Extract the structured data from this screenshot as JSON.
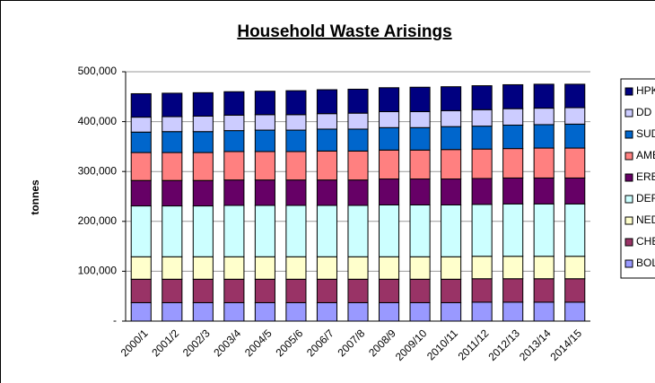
{
  "chart_data": {
    "type": "stacked_bar",
    "title": "Household Waste Arisings",
    "y_label": "tonnes",
    "categories": [
      "2000/1",
      "2001/2",
      "2002/3",
      "2003/4",
      "2004/5",
      "2005/6",
      "2006/7",
      "2007/8",
      "2008/9",
      "2009/10",
      "2010/11",
      "2011/12",
      "2012/13",
      "2013/14",
      "2014/15"
    ],
    "series": [
      {
        "name": "BOL",
        "color": "#9999ff",
        "values": [
          37000,
          37000,
          37000,
          37000,
          37000,
          37000,
          37000,
          37000,
          37000,
          37000,
          37000,
          38000,
          38000,
          38000,
          38000
        ]
      },
      {
        "name": "CHE",
        "color": "#993366",
        "values": [
          47000,
          47000,
          47000,
          47000,
          47000,
          47000,
          47000,
          47000,
          47000,
          47000,
          47000,
          47000,
          47000,
          47000,
          47000
        ]
      },
      {
        "name": "NED",
        "color": "#ffffcc",
        "values": [
          45000,
          45000,
          45000,
          45000,
          45000,
          45000,
          45000,
          45000,
          45000,
          45000,
          45000,
          45000,
          45000,
          45000,
          45000
        ]
      },
      {
        "name": "DER",
        "color": "#ccffff",
        "values": [
          102000,
          102000,
          102000,
          103000,
          103000,
          103000,
          103000,
          103000,
          104000,
          104000,
          104000,
          104000,
          105000,
          105000,
          105000
        ]
      },
      {
        "name": "ERE",
        "color": "#660066",
        "values": [
          51000,
          51000,
          51000,
          51000,
          51000,
          51000,
          51000,
          51000,
          52000,
          52000,
          52000,
          52000,
          52000,
          52000,
          52000
        ]
      },
      {
        "name": "AMB",
        "color": "#ff8080",
        "values": [
          56000,
          56000,
          56000,
          57000,
          57000,
          57000,
          58000,
          58000,
          58000,
          58000,
          59000,
          59000,
          59000,
          60000,
          60000
        ]
      },
      {
        "name": "SUD",
        "color": "#0066cc",
        "values": [
          41000,
          42000,
          42000,
          42000,
          43000,
          43000,
          44000,
          44000,
          45000,
          45000,
          46000,
          46000,
          47000,
          47000,
          48000
        ]
      },
      {
        "name": "DD",
        "color": "#ccccff",
        "values": [
          30000,
          30000,
          31000,
          31000,
          31000,
          31000,
          31000,
          32000,
          32000,
          32000,
          32000,
          33000,
          33000,
          33000,
          33000
        ]
      },
      {
        "name": "HPK",
        "color": "#000080",
        "values": [
          47000,
          47000,
          47000,
          47000,
          47000,
          48000,
          48000,
          48000,
          48000,
          49000,
          48000,
          48000,
          48000,
          48000,
          47000
        ]
      }
    ],
    "ylim": [
      0,
      500000
    ],
    "yticks": [
      {
        "value": 0,
        "label": "-"
      },
      {
        "value": 100000,
        "label": "100,000"
      },
      {
        "value": 200000,
        "label": "200,000"
      },
      {
        "value": 300000,
        "label": "300,000"
      },
      {
        "value": 400000,
        "label": "400,000"
      },
      {
        "value": 500000,
        "label": "500,000"
      }
    ],
    "grid": true,
    "legend": "right"
  }
}
